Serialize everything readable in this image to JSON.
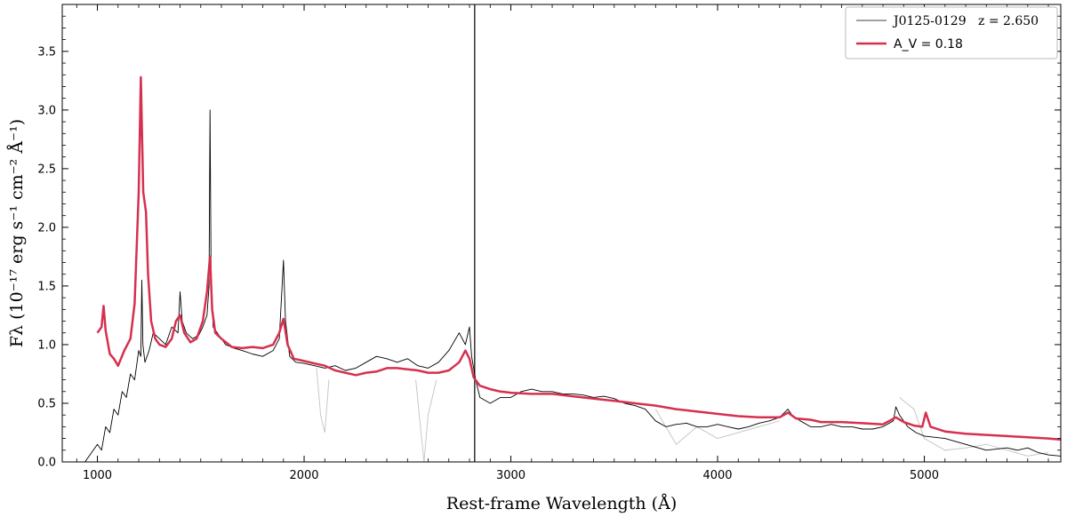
{
  "chart_data": {
    "type": "line",
    "title": "",
    "xlabel": "Rest-frame Wavelength  (Å)",
    "ylabel": "Fλ (10⁻¹⁷ erg s⁻¹ cm⁻² Å⁻¹)",
    "xlim": [
      830,
      5660
    ],
    "ylim": [
      0,
      3.9
    ],
    "xticks": [
      1000,
      2000,
      3000,
      4000,
      5000
    ],
    "xtick_labels": [
      "1000",
      "2000",
      "3000",
      "4000",
      "5000"
    ],
    "yticks": [
      0.0,
      0.5,
      1.0,
      1.5,
      2.0,
      2.5,
      3.0,
      3.5
    ],
    "ytick_labels": [
      "0.0",
      "0.5",
      "1.0",
      "1.5",
      "2.0",
      "2.5",
      "3.0",
      "3.5"
    ],
    "legend": {
      "position": "top-right",
      "entries": [
        {
          "object": "J0125-0129",
          "redshift": "z = 2.650",
          "color": "#000000"
        },
        {
          "label": "A_V = 0.18",
          "color": "#d6304f"
        }
      ]
    },
    "vertical_line": {
      "x": 2825,
      "color": "#000000"
    },
    "colors": {
      "spectrum": "#000000",
      "masked": "#c8c8c8",
      "model": "#d6304f"
    },
    "series": [
      {
        "name": "J0125-0129",
        "color": "#000000",
        "x": [
          940,
          1000,
          1020,
          1040,
          1060,
          1080,
          1100,
          1120,
          1140,
          1160,
          1180,
          1200,
          1210,
          1215,
          1220,
          1230,
          1250,
          1270,
          1300,
          1330,
          1360,
          1390,
          1400,
          1410,
          1430,
          1460,
          1490,
          1510,
          1530,
          1540,
          1545,
          1550,
          1560,
          1580,
          1620,
          1660,
          1700,
          1750,
          1800,
          1850,
          1880,
          1900,
          1910,
          1930,
          1960,
          2000,
          2050,
          2100,
          2150,
          2200,
          2250,
          2300,
          2350,
          2400,
          2450,
          2500,
          2550,
          2600,
          2650,
          2700,
          2750,
          2780,
          2800,
          2810,
          2830,
          2850,
          2900,
          2950,
          3000,
          3050,
          3100,
          3150,
          3200,
          3250,
          3300,
          3350,
          3400,
          3450,
          3500,
          3550,
          3600,
          3650,
          3700,
          3750,
          3800,
          3850,
          3900,
          3950,
          4000,
          4050,
          4100,
          4150,
          4200,
          4250,
          4300,
          4340,
          4360,
          4400,
          4450,
          4500,
          4550,
          4600,
          4650,
          4700,
          4750,
          4800,
          4850,
          4862,
          4880,
          4920,
          4960,
          5000,
          5100,
          5200,
          5300,
          5400,
          5450,
          5500,
          5550,
          5600,
          5660
        ],
        "values": [
          0.0,
          0.15,
          0.1,
          0.3,
          0.25,
          0.45,
          0.4,
          0.6,
          0.55,
          0.75,
          0.7,
          0.95,
          0.9,
          1.55,
          1.0,
          0.85,
          0.95,
          1.1,
          1.05,
          1.0,
          1.15,
          1.1,
          1.45,
          1.2,
          1.1,
          1.05,
          1.08,
          1.15,
          1.25,
          1.5,
          3.0,
          1.6,
          1.15,
          1.1,
          1.0,
          0.97,
          0.95,
          0.92,
          0.9,
          0.95,
          1.05,
          1.72,
          1.2,
          0.9,
          0.85,
          0.84,
          0.82,
          0.8,
          0.82,
          0.78,
          0.8,
          0.85,
          0.9,
          0.88,
          0.85,
          0.88,
          0.82,
          0.8,
          0.85,
          0.95,
          1.1,
          1.0,
          1.15,
          0.9,
          0.7,
          0.55,
          0.5,
          0.55,
          0.55,
          0.6,
          0.62,
          0.6,
          0.6,
          0.58,
          0.58,
          0.57,
          0.55,
          0.56,
          0.54,
          0.5,
          0.48,
          0.45,
          0.35,
          0.3,
          0.32,
          0.33,
          0.3,
          0.3,
          0.32,
          0.3,
          0.28,
          0.3,
          0.33,
          0.35,
          0.38,
          0.45,
          0.4,
          0.35,
          0.3,
          0.3,
          0.32,
          0.3,
          0.3,
          0.28,
          0.28,
          0.3,
          0.35,
          0.47,
          0.4,
          0.3,
          0.25,
          0.22,
          0.2,
          0.15,
          0.1,
          0.12,
          0.1,
          0.12,
          0.08,
          0.06,
          0.05
        ]
      },
      {
        "name": "A_V = 0.18",
        "color": "#d6304f",
        "x": [
          1000,
          1020,
          1030,
          1040,
          1060,
          1080,
          1100,
          1130,
          1160,
          1180,
          1200,
          1210,
          1216,
          1222,
          1235,
          1245,
          1260,
          1280,
          1300,
          1330,
          1360,
          1380,
          1400,
          1420,
          1450,
          1480,
          1510,
          1530,
          1545,
          1555,
          1570,
          1600,
          1650,
          1700,
          1750,
          1800,
          1850,
          1880,
          1900,
          1920,
          1950,
          2000,
          2050,
          2100,
          2150,
          2200,
          2250,
          2300,
          2350,
          2400,
          2450,
          2500,
          2550,
          2600,
          2650,
          2700,
          2750,
          2780,
          2800,
          2820,
          2850,
          2900,
          2950,
          3000,
          3100,
          3200,
          3300,
          3400,
          3500,
          3600,
          3700,
          3800,
          3900,
          4000,
          4100,
          4200,
          4300,
          4340,
          4380,
          4450,
          4500,
          4600,
          4700,
          4800,
          4862,
          4900,
          4950,
          4990,
          5007,
          5030,
          5100,
          5200,
          5300,
          5400,
          5500,
          5600,
          5660
        ],
        "values": [
          1.1,
          1.15,
          1.33,
          1.12,
          0.92,
          0.88,
          0.82,
          0.95,
          1.05,
          1.35,
          2.3,
          3.28,
          2.8,
          2.3,
          2.13,
          1.6,
          1.2,
          1.05,
          1.0,
          0.98,
          1.05,
          1.2,
          1.25,
          1.1,
          1.02,
          1.05,
          1.2,
          1.45,
          1.75,
          1.3,
          1.1,
          1.05,
          0.98,
          0.97,
          0.98,
          0.97,
          1.0,
          1.1,
          1.22,
          1.0,
          0.88,
          0.86,
          0.84,
          0.82,
          0.78,
          0.76,
          0.74,
          0.76,
          0.77,
          0.8,
          0.8,
          0.79,
          0.78,
          0.76,
          0.76,
          0.78,
          0.85,
          0.95,
          0.88,
          0.72,
          0.65,
          0.62,
          0.6,
          0.59,
          0.58,
          0.58,
          0.56,
          0.54,
          0.52,
          0.5,
          0.48,
          0.45,
          0.43,
          0.41,
          0.39,
          0.38,
          0.38,
          0.42,
          0.37,
          0.36,
          0.34,
          0.34,
          0.33,
          0.32,
          0.38,
          0.34,
          0.31,
          0.3,
          0.42,
          0.3,
          0.26,
          0.24,
          0.23,
          0.22,
          0.21,
          0.2,
          0.19
        ]
      }
    ],
    "masked_regions": [
      {
        "x": [
          2060,
          2080,
          2100,
          2120
        ],
        "values": [
          0.8,
          0.4,
          0.25,
          0.7
        ]
      },
      {
        "x": [
          2540,
          2560,
          2580,
          2600,
          2620,
          2640
        ],
        "values": [
          0.7,
          0.35,
          0.0,
          0.4,
          0.55,
          0.7
        ]
      },
      {
        "x": [
          3700,
          3800,
          3900,
          4000,
          4100,
          4200,
          4300
        ],
        "values": [
          0.45,
          0.15,
          0.3,
          0.2,
          0.25,
          0.3,
          0.35
        ]
      },
      {
        "x": [
          4880,
          4950,
          5000,
          5050,
          5100,
          5200,
          5300,
          5400,
          5500,
          5600
        ],
        "values": [
          0.55,
          0.45,
          0.2,
          0.15,
          0.1,
          0.12,
          0.15,
          0.1,
          0.05,
          0.08
        ]
      }
    ]
  }
}
